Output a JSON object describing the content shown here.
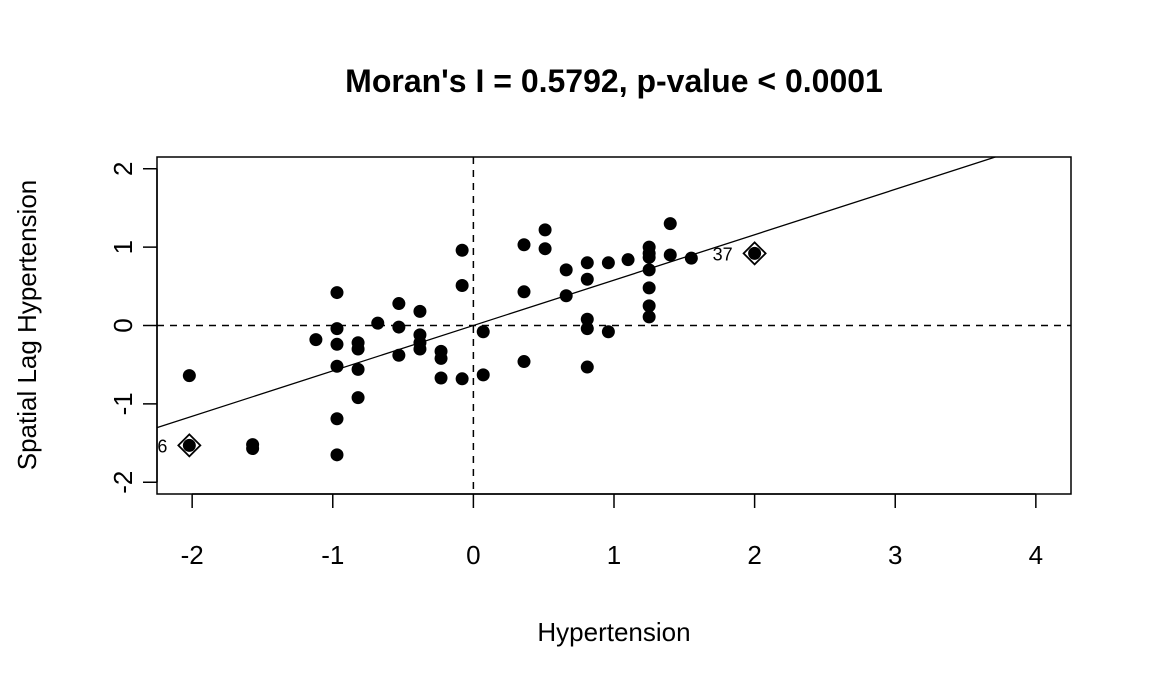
{
  "chart_data": {
    "type": "scatter",
    "title": "Moran's I = 0.5792, p-value < 0.0001",
    "xlabel": "Hypertension",
    "ylabel": "Spatial Lag Hypertension",
    "xlim": [
      -2.25,
      4.25
    ],
    "ylim": [
      -2.15,
      2.15
    ],
    "xticks": [
      -2,
      -1,
      0,
      1,
      2,
      3,
      4
    ],
    "yticks": [
      -2,
      -1,
      0,
      1,
      2
    ],
    "grid": false,
    "reference_lines": {
      "x": 0,
      "y": 0,
      "style": "dashed"
    },
    "regression_line": {
      "slope": 0.5792,
      "intercept": 0.0
    },
    "points": [
      {
        "x": -2.02,
        "y": -0.64
      },
      {
        "x": -1.57,
        "y": -1.52
      },
      {
        "x": -1.57,
        "y": -1.57
      },
      {
        "x": -1.12,
        "y": -0.18
      },
      {
        "x": -0.97,
        "y": 0.42
      },
      {
        "x": -0.97,
        "y": -0.04
      },
      {
        "x": -0.97,
        "y": -0.24
      },
      {
        "x": -0.97,
        "y": -0.52
      },
      {
        "x": -0.97,
        "y": -1.19
      },
      {
        "x": -0.97,
        "y": -1.65
      },
      {
        "x": -0.82,
        "y": -0.22
      },
      {
        "x": -0.82,
        "y": -0.3
      },
      {
        "x": -0.82,
        "y": -0.56
      },
      {
        "x": -0.82,
        "y": -0.92
      },
      {
        "x": -0.68,
        "y": 0.03
      },
      {
        "x": -0.53,
        "y": 0.28
      },
      {
        "x": -0.53,
        "y": -0.02
      },
      {
        "x": -0.53,
        "y": -0.38
      },
      {
        "x": -0.38,
        "y": 0.18
      },
      {
        "x": -0.38,
        "y": -0.12
      },
      {
        "x": -0.38,
        "y": -0.22
      },
      {
        "x": -0.38,
        "y": -0.3
      },
      {
        "x": -0.23,
        "y": -0.33
      },
      {
        "x": -0.23,
        "y": -0.42
      },
      {
        "x": -0.23,
        "y": -0.67
      },
      {
        "x": -0.08,
        "y": 0.96
      },
      {
        "x": -0.08,
        "y": 0.51
      },
      {
        "x": -0.08,
        "y": -0.68
      },
      {
        "x": 0.07,
        "y": -0.08
      },
      {
        "x": 0.07,
        "y": -0.63
      },
      {
        "x": 0.36,
        "y": 1.03
      },
      {
        "x": 0.36,
        "y": 0.43
      },
      {
        "x": 0.36,
        "y": -0.46
      },
      {
        "x": 0.51,
        "y": 1.22
      },
      {
        "x": 0.51,
        "y": 0.98
      },
      {
        "x": 0.66,
        "y": 0.71
      },
      {
        "x": 0.66,
        "y": 0.38
      },
      {
        "x": 0.81,
        "y": 0.8
      },
      {
        "x": 0.81,
        "y": 0.59
      },
      {
        "x": 0.81,
        "y": 0.08
      },
      {
        "x": 0.81,
        "y": -0.04
      },
      {
        "x": 0.81,
        "y": -0.53
      },
      {
        "x": 0.96,
        "y": 0.8
      },
      {
        "x": 0.96,
        "y": -0.08
      },
      {
        "x": 1.1,
        "y": 0.84
      },
      {
        "x": 1.25,
        "y": 1.0
      },
      {
        "x": 1.25,
        "y": 0.92
      },
      {
        "x": 1.25,
        "y": 0.87
      },
      {
        "x": 1.25,
        "y": 0.71
      },
      {
        "x": 1.25,
        "y": 0.48
      },
      {
        "x": 1.25,
        "y": 0.25
      },
      {
        "x": 1.25,
        "y": 0.11
      },
      {
        "x": 1.4,
        "y": 1.3
      },
      {
        "x": 1.4,
        "y": 0.9
      },
      {
        "x": 1.55,
        "y": 0.86
      }
    ],
    "influential_points": [
      {
        "x": 2.0,
        "y": 0.92,
        "label": "37",
        "label_side": "left"
      },
      {
        "x": -2.02,
        "y": -1.53,
        "label": "6",
        "label_side": "left"
      }
    ]
  }
}
